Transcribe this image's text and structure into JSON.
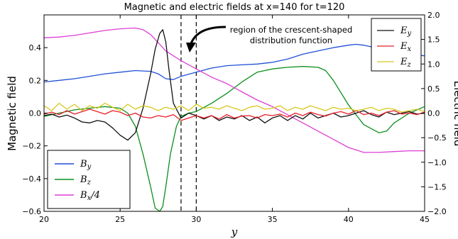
{
  "chart_data": {
    "type": "line",
    "title": "Magnetic and electric fields at x=140 for t=120",
    "xlabel": "y",
    "ylabel_left": "Magnetic field",
    "ylabel_right": "Electric field",
    "xlim": [
      20,
      45
    ],
    "ylim_left": [
      -0.6,
      0.6
    ],
    "ylim_right": [
      -2.0,
      2.0
    ],
    "x_ticks": [
      "20",
      "25",
      "30",
      "35",
      "40",
      "45"
    ],
    "y_ticks_left": [
      "−0.6",
      "−0.4",
      "−0.2",
      "0.0",
      "0.2",
      "0.4"
    ],
    "y_ticks_right": [
      "−2.0",
      "−1.5",
      "−1.0",
      "−0.5",
      "0.0",
      "0.5",
      "1.0",
      "1.5",
      "2.0"
    ],
    "grid": false,
    "annotation": {
      "lines": [
        "region of the crescent-shaped",
        "distribution function"
      ],
      "dashed_lines_at": [
        29,
        30
      ]
    },
    "legend_left": {
      "placement": "lower-left",
      "entries": [
        "B_y",
        "B_z",
        "B_x/4"
      ]
    },
    "legend_right": {
      "placement": "upper-right",
      "entries": [
        "E_y",
        "E_x",
        "E_z"
      ]
    },
    "series": [
      {
        "name": "B_y",
        "axis": "left",
        "color": "#1f4fd6",
        "x": [
          20,
          21,
          22,
          23,
          24,
          25,
          26,
          27,
          27.5,
          28,
          28.5,
          29,
          30,
          31,
          32,
          33,
          34,
          35,
          36,
          37,
          38,
          39,
          40,
          40.5,
          41,
          42,
          43,
          44,
          45
        ],
        "y": [
          0.19,
          0.2,
          0.21,
          0.225,
          0.24,
          0.25,
          0.26,
          0.255,
          0.24,
          0.21,
          0.205,
          0.225,
          0.25,
          0.275,
          0.29,
          0.295,
          0.3,
          0.31,
          0.33,
          0.36,
          0.38,
          0.4,
          0.415,
          0.42,
          0.415,
          0.395,
          0.38,
          0.36,
          0.35
        ]
      },
      {
        "name": "B_z",
        "axis": "left",
        "color": "#0c8f1c",
        "x": [
          20,
          21,
          22,
          23,
          24,
          25,
          25.5,
          26,
          26.5,
          27,
          27.3,
          27.6,
          27.8,
          28,
          28.3,
          28.7,
          29,
          29.5,
          30,
          31,
          32,
          33,
          34,
          35,
          36,
          37,
          38,
          38.5,
          39,
          40,
          41,
          42,
          42.5,
          43,
          44,
          45
        ],
        "y": [
          -0.02,
          0.0,
          0.02,
          0.03,
          0.04,
          0.03,
          0.0,
          -0.08,
          -0.25,
          -0.45,
          -0.58,
          -0.6,
          -0.57,
          -0.45,
          -0.25,
          -0.08,
          -0.02,
          0.0,
          0.01,
          0.06,
          0.12,
          0.19,
          0.25,
          0.27,
          0.28,
          0.285,
          0.28,
          0.26,
          0.2,
          0.05,
          -0.07,
          -0.12,
          -0.11,
          -0.06,
          0.0,
          0.04
        ]
      },
      {
        "name": "B_x/4",
        "axis": "left",
        "color": "#dd3fd6",
        "x": [
          20,
          21,
          22,
          23,
          24,
          25,
          26,
          26.5,
          27,
          27.5,
          28,
          28.5,
          29,
          30,
          31,
          32,
          33,
          34,
          35,
          36,
          37,
          38,
          39,
          40,
          41,
          42,
          43,
          44,
          45
        ],
        "y": [
          0.46,
          0.465,
          0.475,
          0.49,
          0.505,
          0.515,
          0.52,
          0.51,
          0.48,
          0.43,
          0.38,
          0.35,
          0.32,
          0.27,
          0.22,
          0.18,
          0.13,
          0.08,
          0.04,
          -0.01,
          -0.06,
          -0.11,
          -0.16,
          -0.21,
          -0.24,
          -0.24,
          -0.235,
          -0.23,
          -0.23
        ]
      },
      {
        "name": "E_y",
        "axis": "right",
        "color": "#111111",
        "x": [
          20,
          20.5,
          21,
          21.5,
          22,
          22.5,
          23,
          23.5,
          24,
          24.5,
          25,
          25.5,
          26,
          26.5,
          27,
          27.3,
          27.6,
          27.8,
          28,
          28.2,
          28.5,
          29,
          29.5,
          30,
          30.5,
          31,
          31.5,
          32,
          32.5,
          33,
          33.5,
          34,
          34.5,
          35,
          35.5,
          36,
          36.5,
          37,
          37.5,
          38,
          38.5,
          39,
          39.5,
          40,
          40.5,
          41,
          41.5,
          42,
          42.5,
          43,
          43.5,
          44,
          44.5,
          45
        ],
        "y": [
          -0.05,
          -0.02,
          -0.08,
          -0.04,
          -0.1,
          -0.18,
          -0.2,
          -0.15,
          -0.18,
          -0.3,
          -0.45,
          -0.55,
          -0.4,
          0.1,
          0.8,
          1.3,
          1.62,
          1.7,
          1.45,
          0.9,
          0.2,
          -0.1,
          0.0,
          -0.05,
          -0.12,
          -0.05,
          -0.15,
          -0.08,
          -0.12,
          -0.05,
          -0.15,
          -0.08,
          -0.2,
          -0.1,
          -0.05,
          -0.15,
          -0.05,
          -0.12,
          0.0,
          -0.1,
          -0.05,
          0.0,
          -0.08,
          -0.05,
          0.0,
          0.05,
          -0.03,
          -0.08,
          0.02,
          -0.03,
          0.0,
          0.03,
          -0.02,
          0.0
        ]
      },
      {
        "name": "E_x",
        "axis": "right",
        "color": "#e8202a",
        "x": [
          20,
          20.5,
          21,
          21.5,
          22,
          22.5,
          23,
          23.5,
          24,
          24.5,
          25,
          25.5,
          26,
          26.5,
          27,
          27.5,
          28,
          28.5,
          29,
          29.5,
          30,
          30.5,
          31,
          31.5,
          32,
          32.5,
          33,
          33.5,
          34,
          34.5,
          35,
          35.5,
          36,
          36.5,
          37,
          37.5,
          38,
          38.5,
          39,
          39.5,
          40,
          40.5,
          41,
          41.5,
          42,
          42.5,
          43,
          43.5,
          44,
          44.5,
          45
        ],
        "y": [
          -0.02,
          0.02,
          -0.03,
          0.05,
          -0.02,
          0.03,
          0.08,
          0.03,
          -0.02,
          0.05,
          0.02,
          -0.05,
          0.0,
          -0.08,
          -0.1,
          -0.05,
          -0.08,
          -0.03,
          -0.15,
          -0.1,
          -0.05,
          -0.1,
          -0.05,
          -0.12,
          -0.03,
          -0.1,
          -0.06,
          -0.05,
          -0.1,
          -0.03,
          -0.05,
          -0.02,
          -0.08,
          0.0,
          -0.05,
          0.02,
          -0.03,
          -0.06,
          0.0,
          0.03,
          -0.02,
          0.05,
          -0.03,
          0.0,
          -0.05,
          0.02,
          0.05,
          -0.02,
          0.0,
          -0.03,
          0.02
        ]
      },
      {
        "name": "E_z",
        "axis": "right",
        "color": "#d7c81e",
        "x": [
          20,
          20.5,
          21,
          21.5,
          22,
          22.5,
          23,
          23.5,
          24,
          24.5,
          25,
          25.5,
          26,
          26.5,
          27,
          27.5,
          28,
          28.5,
          29,
          29.5,
          30,
          30.5,
          31,
          31.5,
          32,
          32.5,
          33,
          33.5,
          34,
          34.5,
          35,
          35.5,
          36,
          36.5,
          37,
          37.5,
          38,
          38.5,
          39,
          39.5,
          40,
          40.5,
          41,
          41.5,
          42,
          42.5,
          43,
          43.5,
          44,
          44.5,
          45
        ],
        "y": [
          0.15,
          0.05,
          0.2,
          0.08,
          0.18,
          0.05,
          0.15,
          0.1,
          0.2,
          0.12,
          0.05,
          0.18,
          0.08,
          0.15,
          0.12,
          0.05,
          0.12,
          0.08,
          0.15,
          0.05,
          0.18,
          0.1,
          0.12,
          0.08,
          0.15,
          0.1,
          0.05,
          0.12,
          0.15,
          0.08,
          0.1,
          0.15,
          0.05,
          0.12,
          0.08,
          0.15,
          0.1,
          0.05,
          0.12,
          0.08,
          0.1,
          0.05,
          0.08,
          0.12,
          0.05,
          0.1,
          0.08,
          0.02,
          0.05,
          0.08,
          0.03
        ]
      }
    ]
  }
}
